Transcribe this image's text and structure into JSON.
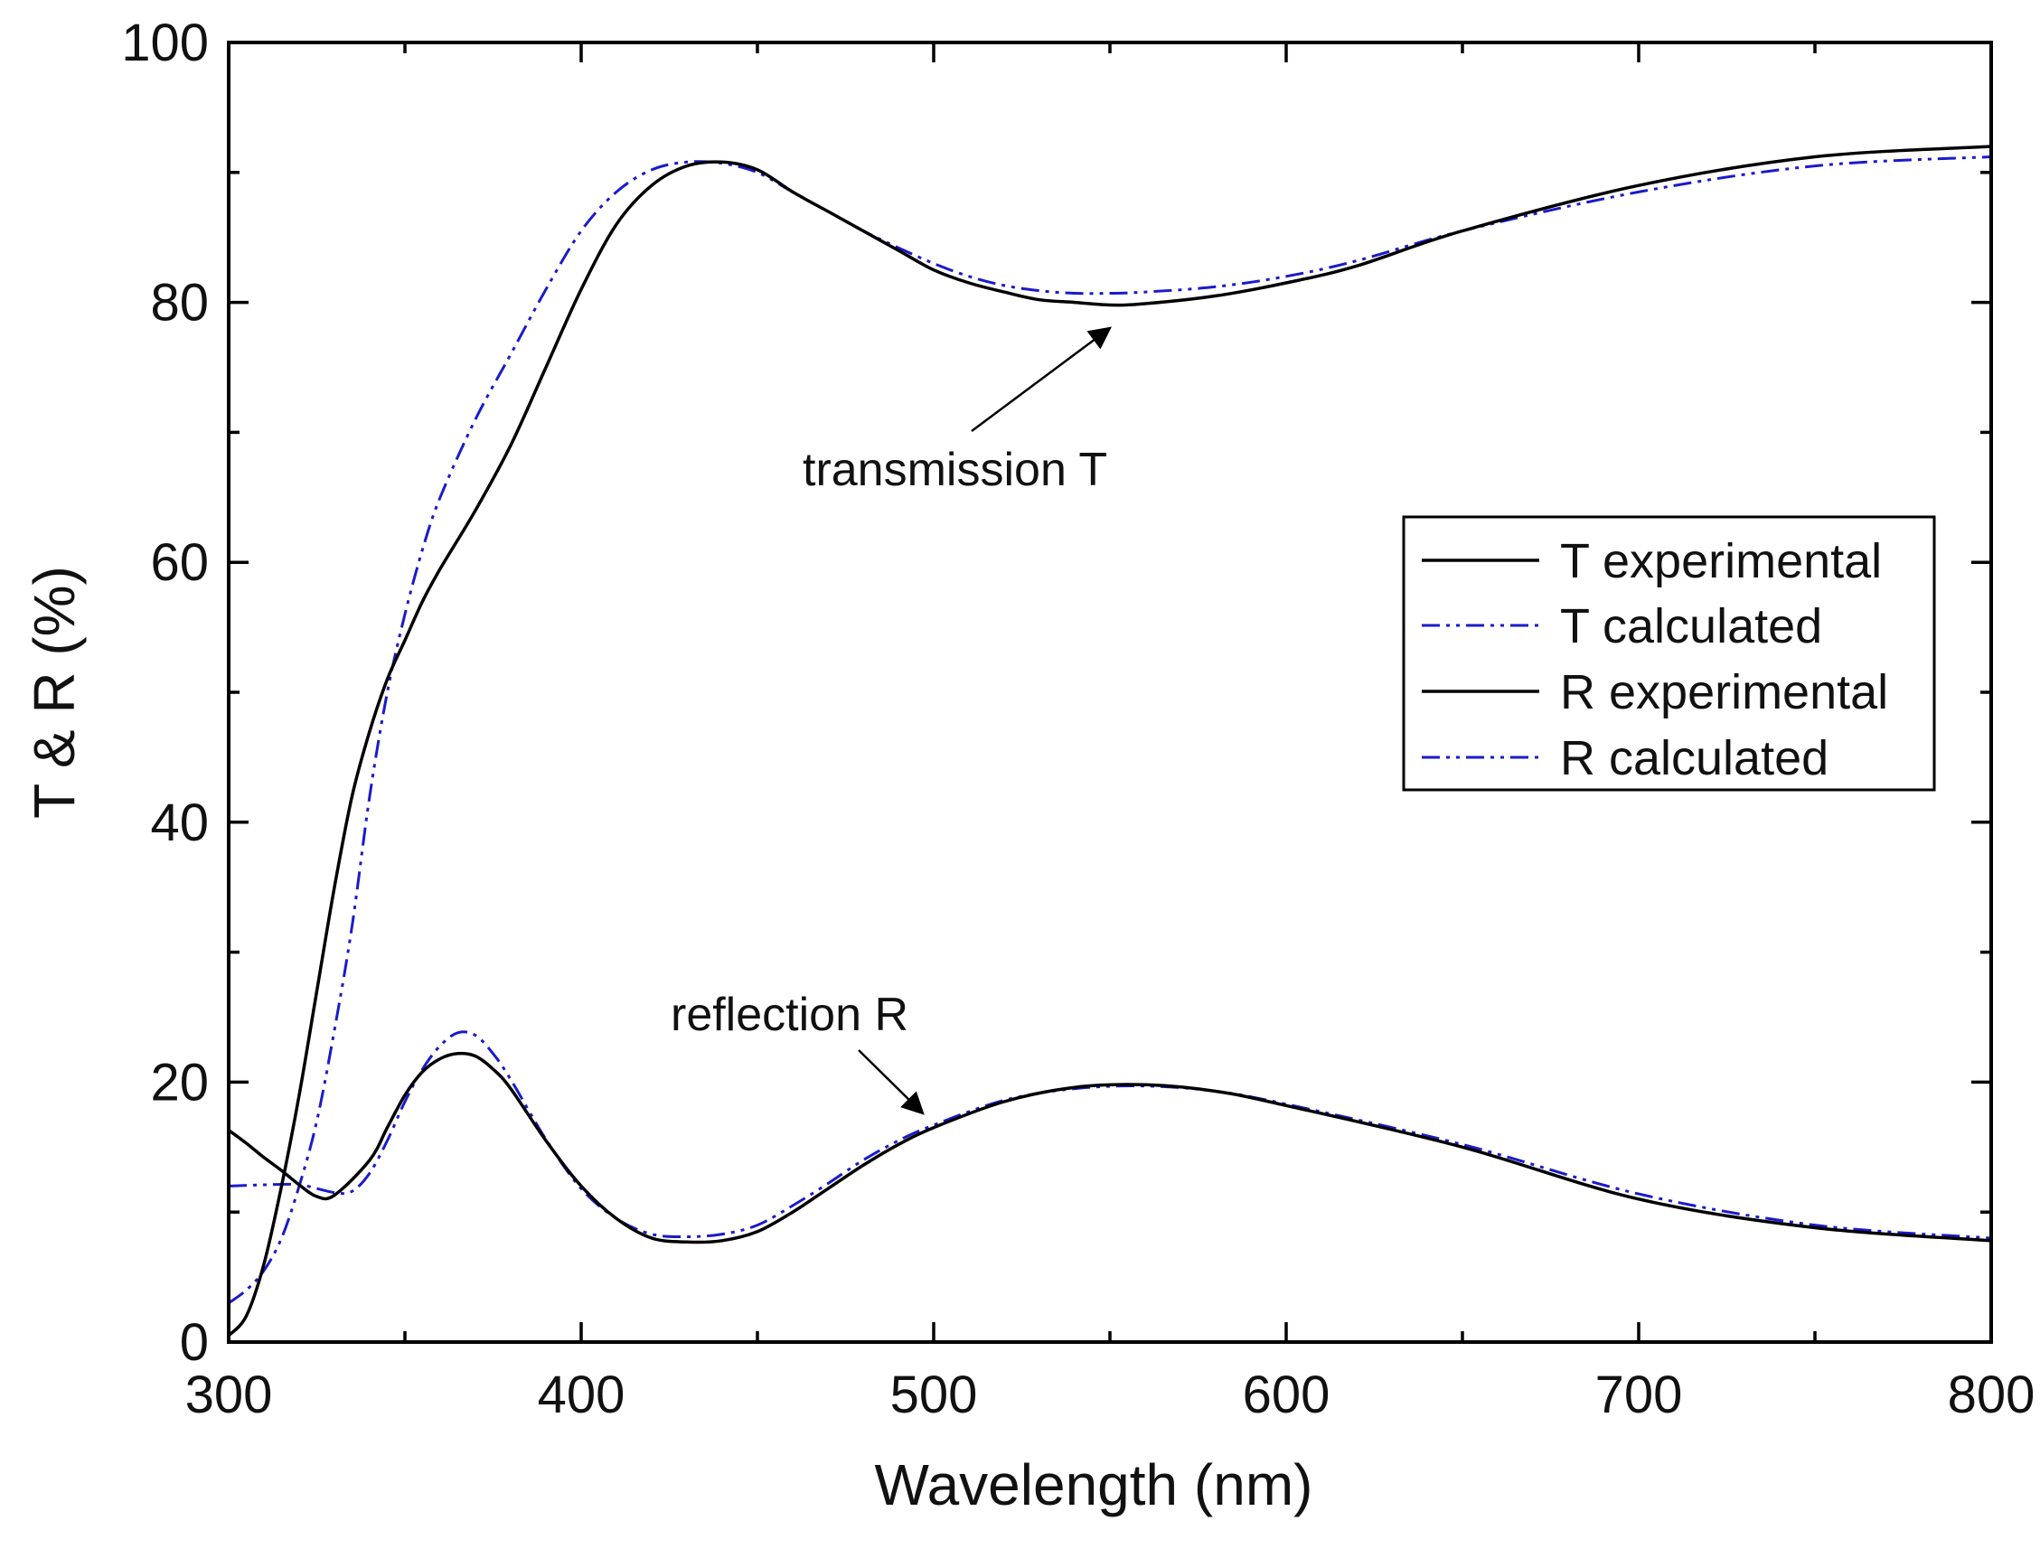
{
  "chart_data": {
    "type": "line",
    "title": "",
    "xlabel": "Wavelength (nm)",
    "ylabel": "T & R (%)",
    "xlim": [
      300,
      800
    ],
    "ylim": [
      0,
      100
    ],
    "xticks": [
      300,
      400,
      500,
      600,
      700,
      800
    ],
    "yticks": [
      0,
      20,
      40,
      60,
      80,
      100
    ],
    "grid": false,
    "legend_position": "right",
    "series": [
      {
        "name": "T experimental",
        "style": "solid",
        "color": "#000000",
        "x": [
          300,
          305,
          310,
          315,
          320,
          325,
          330,
          335,
          340,
          345,
          350,
          355,
          360,
          370,
          380,
          390,
          400,
          410,
          420,
          430,
          440,
          450,
          460,
          470,
          480,
          490,
          500,
          510,
          520,
          530,
          540,
          550,
          560,
          580,
          600,
          620,
          650,
          700,
          750,
          800
        ],
        "y": [
          0.5,
          2,
          6,
          12,
          19,
          27,
          35,
          42,
          47,
          51,
          54,
          57,
          59.5,
          64,
          69,
          75,
          81,
          86,
          89,
          90.5,
          90.8,
          90.2,
          88.5,
          87,
          85.5,
          84,
          82.5,
          81.5,
          80.8,
          80.2,
          80,
          79.8,
          79.9,
          80.5,
          81.5,
          82.8,
          85.5,
          89,
          91.2,
          92
        ]
      },
      {
        "name": "T calculated",
        "style": "dash-dot-dot",
        "color": "#1a1acc",
        "x": [
          300,
          305,
          310,
          315,
          320,
          325,
          330,
          335,
          340,
          345,
          350,
          355,
          360,
          370,
          380,
          390,
          400,
          410,
          420,
          430,
          440,
          450,
          460,
          470,
          480,
          490,
          500,
          510,
          520,
          530,
          540,
          550,
          560,
          580,
          600,
          620,
          650,
          700,
          750,
          800
        ],
        "y": [
          3,
          4,
          5.5,
          8,
          12,
          17,
          24,
          32,
          42,
          50,
          56,
          61,
          65,
          71,
          76,
          81,
          85.5,
          88.5,
          90.2,
          90.8,
          90.7,
          90,
          88.5,
          87,
          85.5,
          84.2,
          83,
          82,
          81.3,
          80.9,
          80.7,
          80.7,
          80.8,
          81.2,
          82,
          83.2,
          85.5,
          88.5,
          90.5,
          91.2
        ]
      },
      {
        "name": "R experimental",
        "style": "solid",
        "color": "#000000",
        "x": [
          300,
          305,
          310,
          315,
          320,
          325,
          330,
          340,
          345,
          350,
          355,
          360,
          365,
          370,
          375,
          380,
          390,
          400,
          410,
          420,
          430,
          440,
          450,
          460,
          470,
          480,
          490,
          500,
          520,
          540,
          560,
          580,
          600,
          650,
          700,
          750,
          800
        ],
        "y": [
          16.3,
          15.3,
          14.2,
          13.2,
          12.1,
          11.2,
          11.3,
          14,
          16.5,
          19,
          20.8,
          21.8,
          22.2,
          22,
          21,
          19.5,
          15.5,
          12,
          9.5,
          8,
          7.7,
          7.8,
          8.5,
          10,
          11.8,
          13.6,
          15.2,
          16.5,
          18.5,
          19.6,
          19.8,
          19.3,
          18.2,
          15,
          11,
          8.8,
          7.8
        ]
      },
      {
        "name": "R calculated",
        "style": "dash-dot-dot",
        "color": "#1a1acc",
        "x": [
          300,
          310,
          320,
          330,
          335,
          340,
          345,
          350,
          355,
          360,
          365,
          370,
          375,
          380,
          390,
          400,
          410,
          420,
          430,
          440,
          450,
          460,
          470,
          480,
          490,
          500,
          520,
          540,
          560,
          580,
          600,
          650,
          700,
          750,
          800
        ],
        "y": [
          12,
          12.1,
          12.1,
          11.5,
          11.6,
          13,
          15.5,
          18.5,
          21,
          22.8,
          23.8,
          23.6,
          22.2,
          20.2,
          15.6,
          11.8,
          9.5,
          8.3,
          8.1,
          8.3,
          9,
          10.5,
          12.2,
          14,
          15.5,
          16.7,
          18.6,
          19.5,
          19.7,
          19.3,
          18.3,
          15.2,
          11.4,
          9,
          8
        ]
      }
    ],
    "annotations": [
      {
        "text": "transmission T",
        "arrow_target": {
          "x": 552,
          "y": 78
        }
      },
      {
        "text": "reflection R",
        "arrow_target": {
          "x": 500,
          "y": 17.5
        }
      }
    ]
  }
}
